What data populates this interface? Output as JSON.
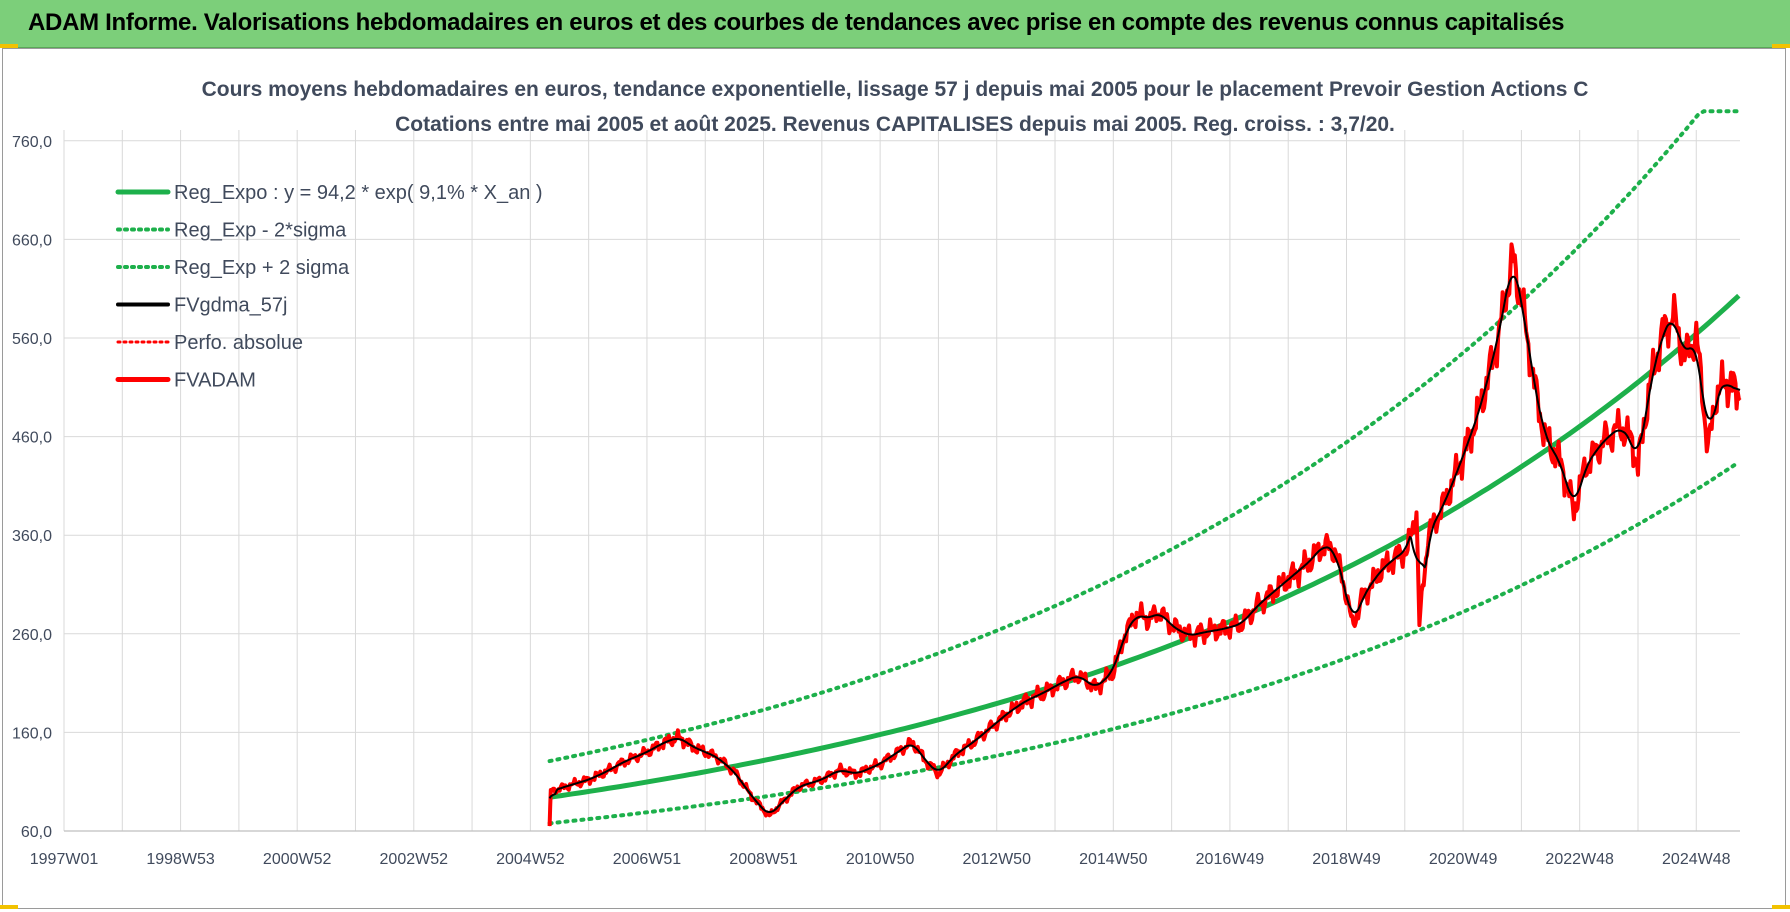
{
  "banner": {
    "title": "ADAM Informe. Valorisations hebdomadaires en euros et des courbes de tendances avec prise en compte des revenus connus capitalisés"
  },
  "chart_data": {
    "type": "line",
    "title_line1": "Cours moyens hebdomadaires en euros, tendance exponentielle, lissage 57 j depuis mai 2005 pour le placement Prevoir Gestion Actions C",
    "title_line2": "Cotations entre mai 2005 et août 2025.  Revenus CAPITALISES depuis mai 2005.  Reg. croiss. : 3,7/20.",
    "xlabel": "",
    "ylabel": "",
    "x_ticks": [
      "1997W01",
      "1998W53",
      "2000W52",
      "2002W52",
      "2004W52",
      "2006W51",
      "2008W51",
      "2010W50",
      "2012W50",
      "2014W50",
      "2016W49",
      "2018W49",
      "2020W49",
      "2022W48",
      "2024W48"
    ],
    "x_range": [
      1997.0,
      2025.75
    ],
    "y_ticks": [
      "60,0",
      "160,0",
      "260,0",
      "360,0",
      "460,0",
      "560,0",
      "660,0",
      "760,0"
    ],
    "ylim": [
      60,
      790
    ],
    "grid": true,
    "legend_position": "top-left",
    "colors": {
      "green": "#1db04b",
      "black": "#000000",
      "red": "#ff0000",
      "grid": "#d9d9d9"
    },
    "regression": {
      "a": 94.2,
      "rate": 0.091,
      "x0": 2005.33,
      "sigma_lower_factor": 0.72,
      "sigma_upper_factor": 1.39
    },
    "series": [
      {
        "name": "Reg_Expo : y = 94,2 * exp( 9,1% *  X_an )",
        "style": "solid-green"
      },
      {
        "name": "Reg_Exp - 2*sigma",
        "style": "dotted-green"
      },
      {
        "name": "Reg_Exp + 2 sigma",
        "style": "dotted-green"
      },
      {
        "name": "FVgdma_57j",
        "style": "solid-black"
      },
      {
        "name": "Perfo. absolue",
        "style": "dotted-red"
      },
      {
        "name": "FVADAM",
        "style": "solid-red"
      }
    ],
    "price_points": [
      [
        2005.33,
        65
      ],
      [
        2005.35,
        100
      ],
      [
        2005.6,
        105
      ],
      [
        2006.0,
        112
      ],
      [
        2006.3,
        120
      ],
      [
        2006.6,
        130
      ],
      [
        2007.0,
        140
      ],
      [
        2007.3,
        150
      ],
      [
        2007.55,
        155
      ],
      [
        2007.8,
        145
      ],
      [
        2008.2,
        135
      ],
      [
        2008.5,
        120
      ],
      [
        2008.8,
        95
      ],
      [
        2009.1,
        75
      ],
      [
        2009.3,
        88
      ],
      [
        2009.6,
        105
      ],
      [
        2010.0,
        112
      ],
      [
        2010.3,
        122
      ],
      [
        2010.6,
        118
      ],
      [
        2011.0,
        128
      ],
      [
        2011.3,
        140
      ],
      [
        2011.55,
        150
      ],
      [
        2011.8,
        130
      ],
      [
        2012.0,
        118
      ],
      [
        2012.3,
        138
      ],
      [
        2012.6,
        150
      ],
      [
        2012.9,
        165
      ],
      [
        2013.2,
        180
      ],
      [
        2013.5,
        192
      ],
      [
        2013.8,
        200
      ],
      [
        2014.1,
        210
      ],
      [
        2014.4,
        218
      ],
      [
        2014.7,
        205
      ],
      [
        2015.0,
        222
      ],
      [
        2015.2,
        260
      ],
      [
        2015.4,
        280
      ],
      [
        2015.6,
        275
      ],
      [
        2015.8,
        282
      ],
      [
        2016.0,
        268
      ],
      [
        2016.3,
        258
      ],
      [
        2016.6,
        262
      ],
      [
        2016.9,
        265
      ],
      [
        2017.2,
        270
      ],
      [
        2017.5,
        290
      ],
      [
        2017.8,
        305
      ],
      [
        2018.1,
        320
      ],
      [
        2018.4,
        335
      ],
      [
        2018.6,
        350
      ],
      [
        2018.8,
        345
      ],
      [
        2019.0,
        300
      ],
      [
        2019.1,
        268
      ],
      [
        2019.3,
        300
      ],
      [
        2019.6,
        325
      ],
      [
        2019.9,
        340
      ],
      [
        2020.05,
        345
      ],
      [
        2020.2,
        385
      ],
      [
        2020.25,
        270
      ],
      [
        2020.4,
        360
      ],
      [
        2020.7,
        395
      ],
      [
        2021.0,
        440
      ],
      [
        2021.3,
        490
      ],
      [
        2021.6,
        560
      ],
      [
        2021.85,
        640
      ],
      [
        2022.0,
        600
      ],
      [
        2022.2,
        520
      ],
      [
        2022.4,
        460
      ],
      [
        2022.7,
        430
      ],
      [
        2022.9,
        385
      ],
      [
        2023.1,
        430
      ],
      [
        2023.4,
        455
      ],
      [
        2023.7,
        470
      ],
      [
        2023.9,
        455
      ],
      [
        2024.0,
        430
      ],
      [
        2024.2,
        510
      ],
      [
        2024.4,
        560
      ],
      [
        2024.6,
        585
      ],
      [
        2024.8,
        540
      ],
      [
        2025.0,
        560
      ],
      [
        2025.1,
        510
      ],
      [
        2025.2,
        445
      ],
      [
        2025.35,
        505
      ],
      [
        2025.5,
        515
      ],
      [
        2025.75,
        505
      ]
    ]
  }
}
